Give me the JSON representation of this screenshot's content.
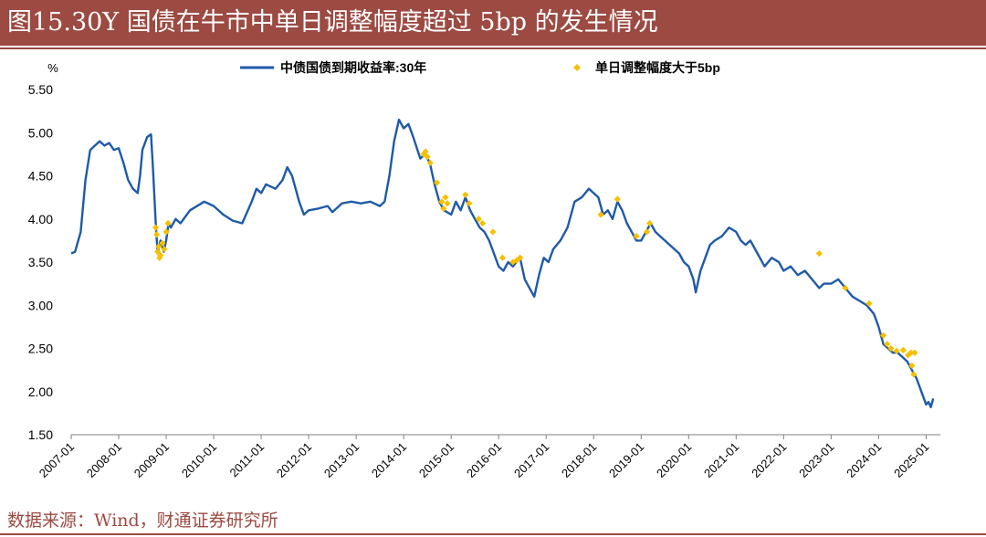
{
  "title": "图15.30Y 国债在牛市中单日调整幅度超过 5bp 的发生情况",
  "source": "数据来源：Wind，财通证券研究所",
  "colors": {
    "title_bg": "#9c4a42",
    "line": "#1f5aa8",
    "marker": "#f5c000",
    "axis": "#808080"
  },
  "chart_data": {
    "type": "line",
    "ylabel": "%",
    "ylim": [
      1.5,
      5.5
    ],
    "yticks": [
      "5.50",
      "5.00",
      "4.50",
      "4.00",
      "3.50",
      "3.00",
      "2.50",
      "2.00",
      "1.50"
    ],
    "xlim": [
      2007.0,
      2025.3
    ],
    "xticks": [
      "2007-01",
      "2008-01",
      "2009-01",
      "2010-01",
      "2011-01",
      "2012-01",
      "2013-01",
      "2014-01",
      "2015-01",
      "2016-01",
      "2017-01",
      "2018-01",
      "2019-01",
      "2020-01",
      "2021-01",
      "2022-01",
      "2023-01",
      "2024-01",
      "2025-01"
    ],
    "grid": false,
    "legend_position": "top",
    "series": [
      {
        "name": "中债国债到期收益率:30年",
        "style": "line",
        "points": [
          [
            2007.0,
            3.6
          ],
          [
            2007.08,
            3.62
          ],
          [
            2007.2,
            3.85
          ],
          [
            2007.3,
            4.45
          ],
          [
            2007.4,
            4.8
          ],
          [
            2007.5,
            4.85
          ],
          [
            2007.6,
            4.9
          ],
          [
            2007.7,
            4.85
          ],
          [
            2007.8,
            4.88
          ],
          [
            2007.9,
            4.8
          ],
          [
            2008.0,
            4.82
          ],
          [
            2008.1,
            4.65
          ],
          [
            2008.2,
            4.45
          ],
          [
            2008.3,
            4.35
          ],
          [
            2008.4,
            4.3
          ],
          [
            2008.45,
            4.5
          ],
          [
            2008.5,
            4.8
          ],
          [
            2008.6,
            4.95
          ],
          [
            2008.68,
            4.98
          ],
          [
            2008.72,
            4.6
          ],
          [
            2008.78,
            3.95
          ],
          [
            2008.82,
            3.6
          ],
          [
            2008.88,
            3.75
          ],
          [
            2008.95,
            3.62
          ],
          [
            2009.0,
            3.75
          ],
          [
            2009.05,
            3.95
          ],
          [
            2009.1,
            3.9
          ],
          [
            2009.2,
            4.0
          ],
          [
            2009.3,
            3.95
          ],
          [
            2009.5,
            4.1
          ],
          [
            2009.8,
            4.2
          ],
          [
            2010.0,
            4.15
          ],
          [
            2010.2,
            4.05
          ],
          [
            2010.4,
            3.98
          ],
          [
            2010.6,
            3.95
          ],
          [
            2010.8,
            4.2
          ],
          [
            2010.9,
            4.35
          ],
          [
            2011.0,
            4.3
          ],
          [
            2011.1,
            4.4
          ],
          [
            2011.3,
            4.35
          ],
          [
            2011.45,
            4.45
          ],
          [
            2011.55,
            4.6
          ],
          [
            2011.65,
            4.5
          ],
          [
            2011.8,
            4.2
          ],
          [
            2011.9,
            4.05
          ],
          [
            2012.0,
            4.1
          ],
          [
            2012.2,
            4.12
          ],
          [
            2012.4,
            4.15
          ],
          [
            2012.5,
            4.08
          ],
          [
            2012.7,
            4.18
          ],
          [
            2012.9,
            4.2
          ],
          [
            2013.1,
            4.18
          ],
          [
            2013.3,
            4.2
          ],
          [
            2013.5,
            4.15
          ],
          [
            2013.6,
            4.2
          ],
          [
            2013.7,
            4.5
          ],
          [
            2013.8,
            4.9
          ],
          [
            2013.9,
            5.15
          ],
          [
            2014.0,
            5.05
          ],
          [
            2014.1,
            5.1
          ],
          [
            2014.2,
            4.95
          ],
          [
            2014.35,
            4.7
          ],
          [
            2014.45,
            4.75
          ],
          [
            2014.55,
            4.65
          ],
          [
            2014.65,
            4.4
          ],
          [
            2014.75,
            4.2
          ],
          [
            2014.85,
            4.1
          ],
          [
            2015.0,
            4.05
          ],
          [
            2015.1,
            4.2
          ],
          [
            2015.2,
            4.1
          ],
          [
            2015.3,
            4.25
          ],
          [
            2015.4,
            4.1
          ],
          [
            2015.5,
            4.0
          ],
          [
            2015.6,
            3.9
          ],
          [
            2015.7,
            3.85
          ],
          [
            2015.8,
            3.75
          ],
          [
            2015.9,
            3.6
          ],
          [
            2016.0,
            3.45
          ],
          [
            2016.1,
            3.4
          ],
          [
            2016.2,
            3.5
          ],
          [
            2016.3,
            3.45
          ],
          [
            2016.45,
            3.55
          ],
          [
            2016.55,
            3.3
          ],
          [
            2016.65,
            3.2
          ],
          [
            2016.75,
            3.1
          ],
          [
            2016.85,
            3.35
          ],
          [
            2016.95,
            3.55
          ],
          [
            2017.05,
            3.5
          ],
          [
            2017.15,
            3.65
          ],
          [
            2017.3,
            3.75
          ],
          [
            2017.45,
            3.9
          ],
          [
            2017.6,
            4.2
          ],
          [
            2017.75,
            4.25
          ],
          [
            2017.9,
            4.35
          ],
          [
            2018.0,
            4.3
          ],
          [
            2018.1,
            4.25
          ],
          [
            2018.2,
            4.05
          ],
          [
            2018.3,
            4.1
          ],
          [
            2018.4,
            4.0
          ],
          [
            2018.5,
            4.2
          ],
          [
            2018.6,
            4.1
          ],
          [
            2018.7,
            3.95
          ],
          [
            2018.8,
            3.85
          ],
          [
            2018.9,
            3.75
          ],
          [
            2019.0,
            3.75
          ],
          [
            2019.1,
            3.85
          ],
          [
            2019.2,
            3.95
          ],
          [
            2019.3,
            3.85
          ],
          [
            2019.4,
            3.8
          ],
          [
            2019.5,
            3.75
          ],
          [
            2019.6,
            3.7
          ],
          [
            2019.7,
            3.65
          ],
          [
            2019.8,
            3.6
          ],
          [
            2019.9,
            3.5
          ],
          [
            2020.0,
            3.45
          ],
          [
            2020.1,
            3.3
          ],
          [
            2020.15,
            3.15
          ],
          [
            2020.25,
            3.4
          ],
          [
            2020.35,
            3.55
          ],
          [
            2020.45,
            3.7
          ],
          [
            2020.55,
            3.75
          ],
          [
            2020.7,
            3.8
          ],
          [
            2020.85,
            3.9
          ],
          [
            2021.0,
            3.85
          ],
          [
            2021.1,
            3.75
          ],
          [
            2021.2,
            3.7
          ],
          [
            2021.3,
            3.75
          ],
          [
            2021.45,
            3.6
          ],
          [
            2021.6,
            3.45
          ],
          [
            2021.75,
            3.55
          ],
          [
            2021.9,
            3.5
          ],
          [
            2022.0,
            3.4
          ],
          [
            2022.15,
            3.45
          ],
          [
            2022.3,
            3.35
          ],
          [
            2022.45,
            3.4
          ],
          [
            2022.6,
            3.3
          ],
          [
            2022.75,
            3.2
          ],
          [
            2022.85,
            3.25
          ],
          [
            2023.0,
            3.25
          ],
          [
            2023.15,
            3.3
          ],
          [
            2023.3,
            3.2
          ],
          [
            2023.45,
            3.1
          ],
          [
            2023.6,
            3.05
          ],
          [
            2023.75,
            3.0
          ],
          [
            2023.9,
            2.9
          ],
          [
            2024.0,
            2.75
          ],
          [
            2024.1,
            2.55
          ],
          [
            2024.2,
            2.5
          ],
          [
            2024.3,
            2.45
          ],
          [
            2024.4,
            2.45
          ],
          [
            2024.5,
            2.4
          ],
          [
            2024.6,
            2.35
          ],
          [
            2024.7,
            2.25
          ],
          [
            2024.8,
            2.15
          ],
          [
            2024.9,
            2.0
          ],
          [
            2025.0,
            1.85
          ],
          [
            2025.05,
            1.88
          ],
          [
            2025.1,
            1.82
          ],
          [
            2025.15,
            1.92
          ]
        ]
      },
      {
        "name": "单日调整幅度大于5bp",
        "style": "marker",
        "points": [
          [
            2008.78,
            3.9
          ],
          [
            2008.8,
            3.82
          ],
          [
            2008.82,
            3.62
          ],
          [
            2008.84,
            3.68
          ],
          [
            2008.86,
            3.55
          ],
          [
            2008.88,
            3.58
          ],
          [
            2008.92,
            3.72
          ],
          [
            2008.96,
            3.65
          ],
          [
            2009.0,
            3.85
          ],
          [
            2009.04,
            3.95
          ],
          [
            2014.42,
            4.75
          ],
          [
            2014.46,
            4.78
          ],
          [
            2014.5,
            4.72
          ],
          [
            2014.56,
            4.65
          ],
          [
            2014.7,
            4.42
          ],
          [
            2014.8,
            4.2
          ],
          [
            2014.84,
            4.12
          ],
          [
            2014.88,
            4.25
          ],
          [
            2014.92,
            4.18
          ],
          [
            2015.3,
            4.28
          ],
          [
            2015.38,
            4.18
          ],
          [
            2015.58,
            4.0
          ],
          [
            2015.66,
            3.95
          ],
          [
            2015.88,
            3.85
          ],
          [
            2016.08,
            3.55
          ],
          [
            2016.3,
            3.5
          ],
          [
            2016.38,
            3.52
          ],
          [
            2016.45,
            3.55
          ],
          [
            2018.15,
            4.05
          ],
          [
            2018.5,
            4.23
          ],
          [
            2018.9,
            3.8
          ],
          [
            2019.12,
            3.85
          ],
          [
            2019.18,
            3.95
          ],
          [
            2022.75,
            3.6
          ],
          [
            2023.3,
            3.2
          ],
          [
            2023.8,
            3.02
          ],
          [
            2024.1,
            2.65
          ],
          [
            2024.18,
            2.55
          ],
          [
            2024.26,
            2.5
          ],
          [
            2024.38,
            2.47
          ],
          [
            2024.52,
            2.48
          ],
          [
            2024.62,
            2.42
          ],
          [
            2024.68,
            2.45
          ],
          [
            2024.7,
            2.3
          ],
          [
            2024.74,
            2.2
          ],
          [
            2024.76,
            2.45
          ]
        ]
      }
    ]
  }
}
